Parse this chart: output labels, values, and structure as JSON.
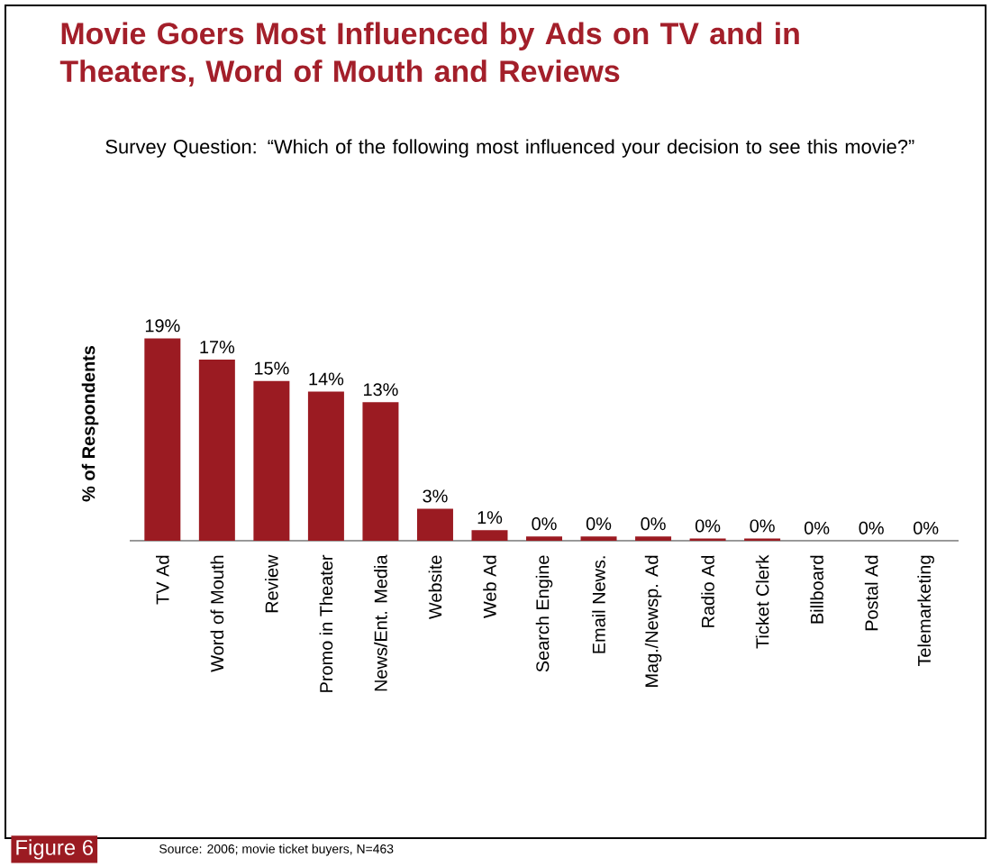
{
  "chart_data": {
    "type": "bar",
    "title": "Movie Goers Most Influenced by Ads on TV and in Theaters, Word of Mouth and Reviews",
    "subtitle": "Survey Question: “Which of the following most influenced your decision to see this movie?”",
    "ylabel": "% of Respondents",
    "categories": [
      "TV Ad",
      "Word of Mouth",
      "Review",
      "Promo in Theater",
      "News/Ent. Media",
      "Website",
      "Web Ad",
      "Search Engine",
      "Email News.",
      "Mag./Newsp. Ad",
      "Radio Ad",
      "Ticket Clerk",
      "Billboard",
      "Postal Ad",
      "Telemarketing"
    ],
    "values": [
      19,
      17,
      15,
      14,
      13,
      3,
      1,
      0.4,
      0.4,
      0.4,
      0.2,
      0.2,
      0,
      0,
      0
    ],
    "value_labels": [
      "19%",
      "17%",
      "15%",
      "14%",
      "13%",
      "3%",
      "1%",
      "0%",
      "0%",
      "0%",
      "0%",
      "0%",
      "0%",
      "0%",
      "0%"
    ],
    "color": "#9b1b22",
    "annotations": [
      "Figure 6",
      "Source: 2006; movie ticket buyers, N=463"
    ]
  }
}
